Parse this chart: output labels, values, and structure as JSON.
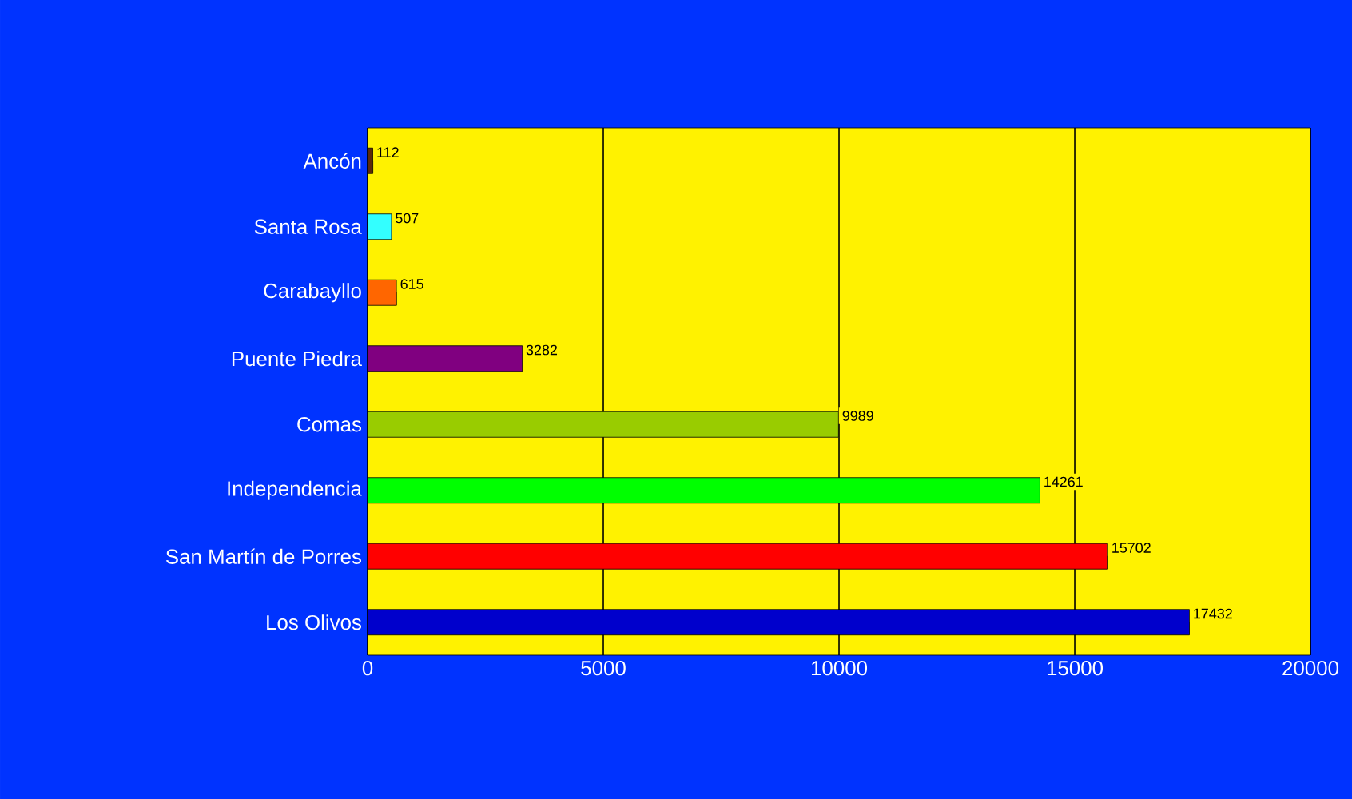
{
  "chart_data": {
    "type": "bar",
    "orientation": "horizontal",
    "categories": [
      "Ancón",
      "Santa Rosa",
      "Carabayllo",
      "Puente Piedra",
      "Comas",
      "Independencia",
      "San Martín de Porres",
      "Los Olivos"
    ],
    "values": [
      112,
      507,
      615,
      3282,
      9989,
      14261,
      15702,
      17432
    ],
    "colors": [
      "#5c2a0a",
      "#33ffff",
      "#ff6600",
      "#800080",
      "#99cc00",
      "#00ff00",
      "#ff0000",
      "#0000cc"
    ],
    "xlim": [
      0,
      20000
    ],
    "xticks": [
      0,
      5000,
      10000,
      15000,
      20000
    ],
    "grid": "x",
    "data_labels": true
  }
}
